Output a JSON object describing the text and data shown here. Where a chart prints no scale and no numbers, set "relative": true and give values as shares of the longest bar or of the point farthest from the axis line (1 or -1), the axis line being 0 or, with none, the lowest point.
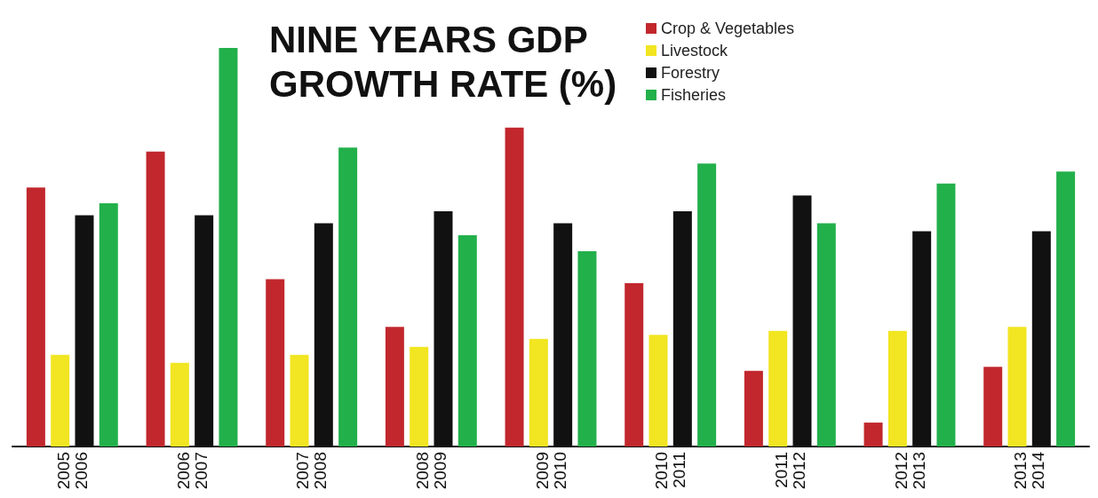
{
  "chart_data": {
    "type": "bar",
    "title": "NINE YEARS GDP\nGROWTH RATE (%)",
    "relative": true,
    "legend": "top right",
    "grid": false,
    "categories": [
      "2005\n2006",
      "2006\n2007",
      "2007\n2008",
      "2008\n2009",
      "2009\n2010",
      "2010\n2011",
      "2011\n2012",
      "2012\n2013",
      "2013\n2014"
    ],
    "series": [
      {
        "name": "Crop & Vegetables",
        "color": "#c1272d",
        "values": [
          0.65,
          0.74,
          0.42,
          0.3,
          0.8,
          0.41,
          0.19,
          0.06,
          0.2
        ]
      },
      {
        "name": "Livestock",
        "color": "#f2e521",
        "values": [
          0.23,
          0.21,
          0.23,
          0.25,
          0.27,
          0.28,
          0.29,
          0.29,
          0.3
        ]
      },
      {
        "name": "Forestry",
        "color": "#111111",
        "values": [
          0.58,
          0.58,
          0.56,
          0.59,
          0.56,
          0.59,
          0.63,
          0.54,
          0.54
        ]
      },
      {
        "name": "Fisheries",
        "color": "#22b04b",
        "values": [
          0.61,
          1,
          0.75,
          0.53,
          0.49,
          0.71,
          0.56,
          0.66,
          0.69
        ]
      }
    ]
  }
}
